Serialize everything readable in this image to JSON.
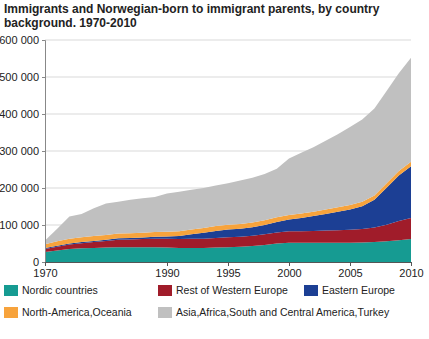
{
  "chart_data": {
    "type": "area",
    "title": "Immigrants and Norwegian-born to immigrant parents, by country background. 1970-2010",
    "stacked": true,
    "grid": true,
    "legend": "bottom",
    "categories": [
      "1970",
      null,
      null,
      null,
      null,
      null,
      null,
      null,
      null,
      null,
      "1990",
      null,
      null,
      null,
      null,
      "1995",
      null,
      null,
      null,
      null,
      "2000",
      null,
      null,
      null,
      null,
      "2005",
      null,
      null,
      null,
      null,
      "2010"
    ],
    "ylim": [
      0,
      600000
    ],
    "yticks": [
      0,
      {
        "value": 100000,
        "label": "100 000"
      },
      {
        "value": 200000,
        "label": "200 000"
      },
      {
        "value": 300000,
        "label": "300 000"
      },
      {
        "value": 400000,
        "label": "400 000"
      },
      {
        "value": 500000,
        "label": "500 000"
      },
      {
        "value": 600000,
        "label": "600 000"
      }
    ],
    "series": [
      {
        "name": "Nordic countries",
        "color": "#169b92",
        "values": [
          27000,
          31000,
          35000,
          37000,
          38000,
          39000,
          40000,
          40000,
          40000,
          40000,
          39000,
          38000,
          38000,
          38000,
          39000,
          40000,
          41000,
          43000,
          46000,
          50000,
          52000,
          52000,
          52000,
          52000,
          52000,
          52000,
          53000,
          54000,
          56000,
          59000,
          62000
        ]
      },
      {
        "name": "Rest of Western Europe",
        "color": "#a01c2a",
        "values": [
          8000,
          10000,
          12000,
          14000,
          16000,
          18000,
          20000,
          21000,
          22000,
          23000,
          24000,
          24000,
          25000,
          25000,
          26000,
          27000,
          27000,
          28000,
          29000,
          30000,
          31000,
          31000,
          32000,
          33000,
          34000,
          35000,
          36000,
          39000,
          45000,
          52000,
          57000
        ]
      },
      {
        "name": "Eastern Europe",
        "color": "#1c3f94",
        "values": [
          3000,
          3000,
          3000,
          3000,
          3000,
          3000,
          4000,
          4000,
          4000,
          5000,
          6000,
          8000,
          12000,
          16000,
          19000,
          21000,
          22000,
          23000,
          25000,
          28000,
          32000,
          36000,
          40000,
          45000,
          50000,
          55000,
          62000,
          75000,
          100000,
          123000,
          140000
        ]
      },
      {
        "name": "North-America,Oceania",
        "color": "#f7a33c",
        "values": [
          10000,
          12000,
          13000,
          13000,
          13000,
          13000,
          13000,
          13000,
          13000,
          13000,
          13000,
          13000,
          13000,
          13000,
          13000,
          13000,
          13000,
          13000,
          13000,
          13000,
          12000,
          12000,
          12000,
          12000,
          12000,
          12000,
          12000,
          12000,
          12000,
          12000,
          12000
        ]
      },
      {
        "name": "Asia,Africa,South and Central America,Turkey",
        "color": "#c0c0c0",
        "values": [
          10000,
          34000,
          60000,
          63000,
          75000,
          85000,
          86000,
          90000,
          93000,
          95000,
          103000,
          107000,
          107000,
          108000,
          110000,
          112000,
          117000,
          121000,
          125000,
          131000,
          153000,
          164000,
          174000,
          186000,
          197000,
          211000,
          222000,
          235000,
          249000,
          264000,
          281000
        ]
      }
    ]
  }
}
